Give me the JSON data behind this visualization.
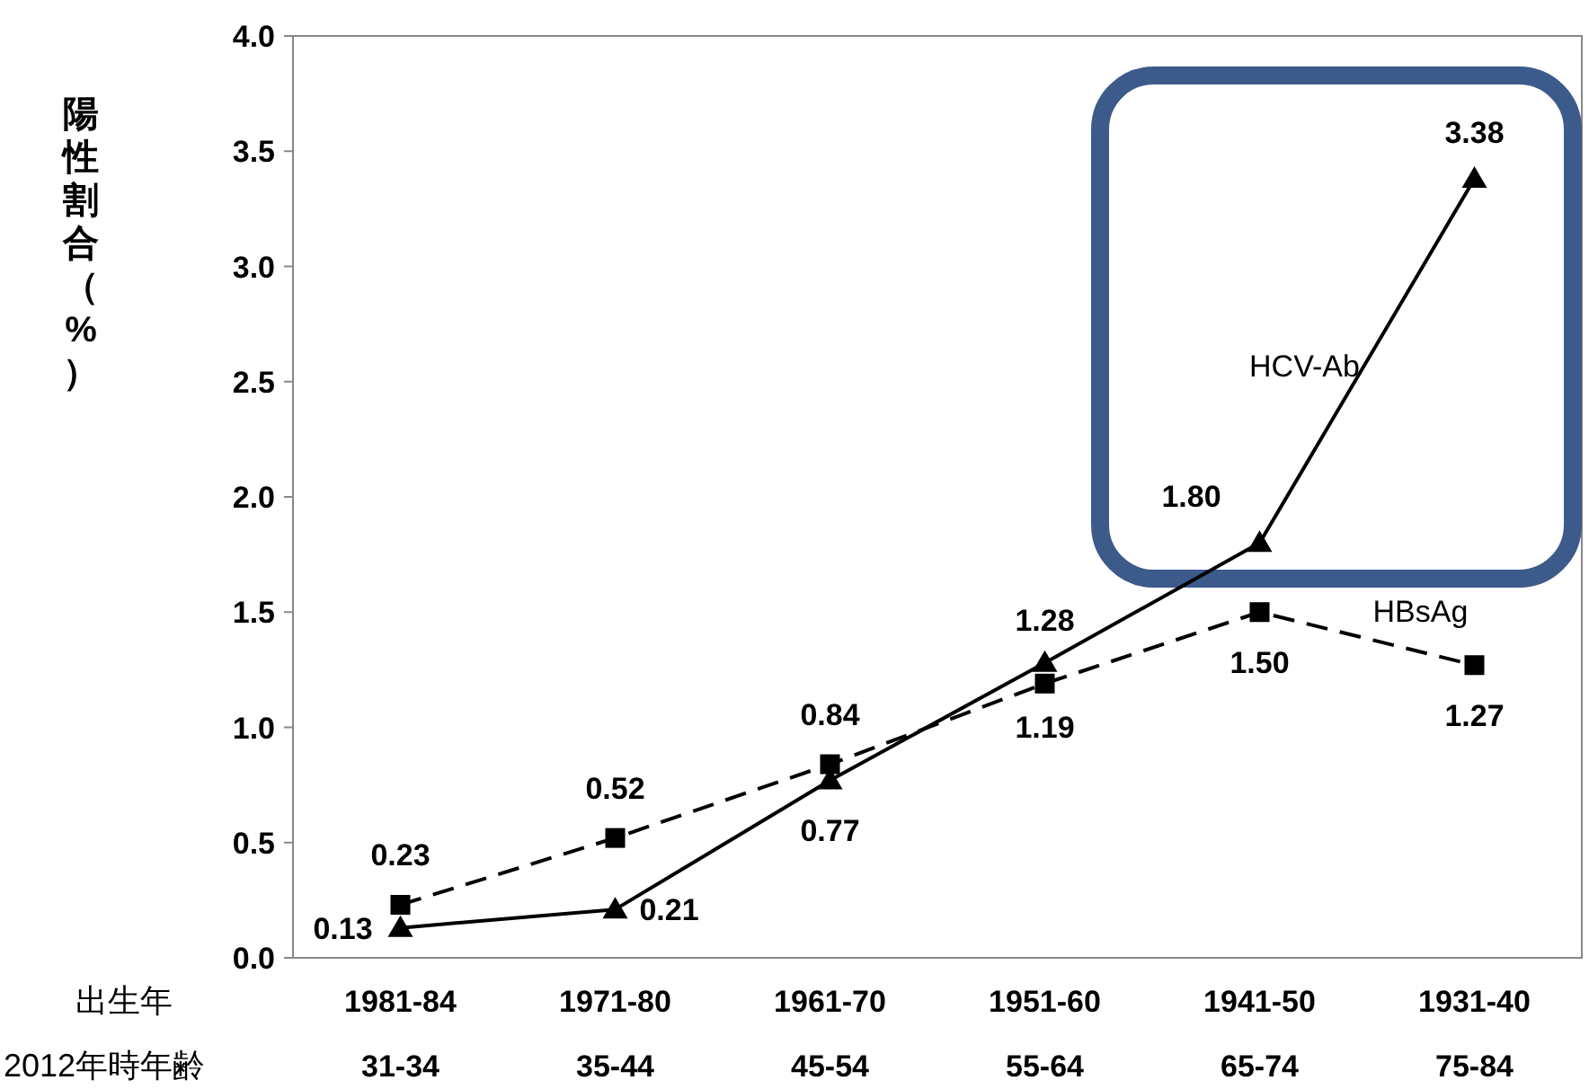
{
  "chart_data": {
    "type": "line",
    "ylabel": "陽性割合（%）",
    "categories": [
      "1981-84\n31-34",
      "1971-80\n35-44",
      "1961-70\n45-54",
      "1951-60\n55-64",
      "1941-50\n65-74",
      "1931-40\n75-84"
    ],
    "series": [
      {
        "name": "HCV-Ab",
        "color": "#000000",
        "marker": "triangle",
        "line_style": "solid",
        "values": [
          0.13,
          0.21,
          0.77,
          1.28,
          1.8,
          3.38
        ],
        "value_labels": [
          "0.13",
          "0.21",
          "0.77",
          "1.28",
          "1.80",
          "3.38"
        ]
      },
      {
        "name": "HBsAg",
        "color": "#000000",
        "marker": "square",
        "line_style": "dashed",
        "values": [
          0.23,
          0.52,
          0.84,
          1.19,
          1.5,
          1.27
        ],
        "value_labels": [
          "0.23",
          "0.52",
          "0.84",
          "1.19",
          "1.50",
          "1.27"
        ]
      }
    ],
    "ylim": [
      0,
      4
    ],
    "yticks": [
      {
        "value": 0,
        "label": "0.0"
      },
      0.5,
      {
        "value": 1,
        "label": "1.0"
      },
      1.5,
      {
        "value": 2,
        "label": "2.0"
      },
      2.5,
      {
        "value": 3,
        "label": "3.0"
      },
      3.5,
      {
        "value": 4,
        "label": "4.0"
      }
    ],
    "grid": false,
    "annotations": [
      "出生年",
      "2012年時年齢"
    ]
  }
}
